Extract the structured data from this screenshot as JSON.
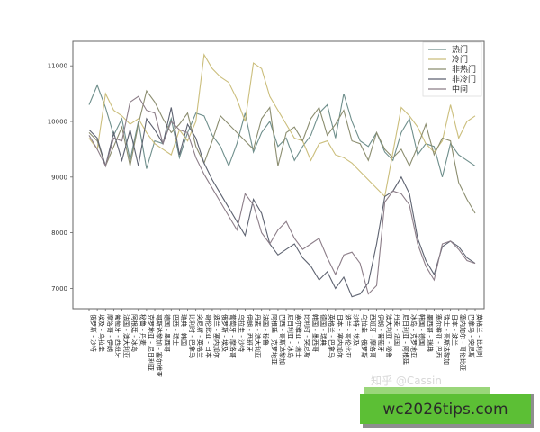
{
  "chart_data": {
    "type": "line",
    "title": "",
    "xlabel": "",
    "ylabel": "",
    "ylim": [
      6600,
      11400
    ],
    "yticks": [
      7000,
      8000,
      9000,
      10000,
      11000
    ],
    "grid": false,
    "legend_position": "upper right",
    "categories": [
      "俄罗斯 - 沙特",
      "埃及 - 乌拉圭",
      "摩洛哥 - 伊朗",
      "葡萄牙 - 西班牙",
      "法国 - 澳大利亚",
      "阿根廷 - 冰岛",
      "秘鲁 - 丹麦",
      "克罗地亚 - 尼日利亚",
      "哥斯达黎加 - 塞尔维亚",
      "德国 - 墨西哥",
      "巴西 - 瑞士",
      "瑞典 - 韩国",
      "比利时 - 巴拿马",
      "突尼斯 - 英格兰",
      "哥伦比亚 - 日本",
      "波兰 - 塞内加尔",
      "俄罗斯 - 埃及",
      "葡萄牙 - 摩洛哥",
      "乌拉圭 - 沙特",
      "伊朗 - 西班牙",
      "丹麦 - 澳大利亚",
      "法国 - 秘鲁",
      "阿根廷 - 克罗地亚",
      "巴西 - 哥斯达黎加",
      "尼日利亚 - 冰岛",
      "塞尔维亚 - 瑞士",
      "比利时 - 突尼斯",
      "韩国 - 墨西哥",
      "德国 - 瑞典",
      "英格兰 - 巴拿马",
      "日本 - 塞内加尔",
      "波兰 - 哥伦比亚",
      "沙特 - 埃及",
      "乌拉圭 - 俄罗斯",
      "西班牙 - 摩洛哥",
      "伊朗 - 葡萄牙",
      "澳大利亚 - 秘鲁",
      "丹麦 - 法国",
      "尼日利亚 - 阿根廷",
      "冰岛 - 克罗地亚",
      "韩国 - 德国",
      "墨西哥 - 瑞典",
      "塞尔维亚 - 巴西",
      "瑞士 - 哥斯达黎加",
      "日本 - 波兰",
      "塞内加尔 - 哥伦比亚",
      "巴拿马 - 突尼斯",
      "英格兰 - 比利时"
    ],
    "series": [
      {
        "name": "热门",
        "color": "#6f8f8c",
        "values": [
          10300,
          10650,
          10250,
          9750,
          10050,
          9300,
          10000,
          9150,
          9650,
          9600,
          10050,
          9350,
          9800,
          10150,
          10100,
          9750,
          9550,
          9200,
          9600,
          10150,
          9450,
          9800,
          10000,
          9550,
          9700,
          9300,
          9550,
          9750,
          10150,
          10300,
          9700,
          10500,
          10000,
          9650,
          9550,
          9800,
          9450,
          9300,
          9800,
          10050,
          9400,
          9600,
          9550,
          9000,
          9600,
          9400,
          9300,
          9200
        ]
      },
      {
        "name": "冷门",
        "color": "#cbbe7c",
        "values": [
          9700,
          9500,
          10500,
          10200,
          10100,
          9950,
          10050,
          9800,
          9600,
          9500,
          9400,
          9850,
          9650,
          10000,
          11200,
          10950,
          10800,
          10700,
          10400,
          10000,
          11050,
          10950,
          10450,
          10200,
          9950,
          9700,
          9650,
          9300,
          9600,
          9650,
          9400,
          9350,
          9250,
          9100,
          8950,
          8800,
          8650,
          9450,
          10250,
          10100,
          9900,
          9600,
          9450,
          9650,
          10300,
          9700,
          10000,
          10100
        ]
      },
      {
        "name": "非热门",
        "color": "#8b8d6f",
        "values": [
          9800,
          9650,
          9200,
          9550,
          9900,
          9200,
          9950,
          10550,
          10350,
          10050,
          9800,
          9950,
          10150,
          9550,
          9250,
          9650,
          10100,
          9950,
          9800,
          9650,
          9500,
          10050,
          10250,
          9200,
          9800,
          9900,
          9650,
          10050,
          10250,
          9750,
          9950,
          10200,
          9650,
          9600,
          9300,
          9800,
          9500,
          9350,
          9500,
          9200,
          9550,
          9950,
          9400,
          9700,
          9650,
          8900,
          8600,
          8350
        ]
      },
      {
        "name": "非冷门",
        "color": "#5d6270",
        "values": [
          9850,
          9700,
          9200,
          9800,
          9300,
          9850,
          9200,
          10050,
          9850,
          9600,
          10250,
          9400,
          9950,
          9700,
          9250,
          8950,
          8700,
          8450,
          8200,
          7950,
          8600,
          8350,
          7800,
          7600,
          7700,
          7800,
          7550,
          7400,
          7150,
          7300,
          7000,
          7200,
          6850,
          6900,
          7100,
          7800,
          8650,
          8750,
          9000,
          8700,
          7900,
          7500,
          7250,
          7750,
          7850,
          7750,
          7550,
          7450
        ]
      },
      {
        "name": "中间",
        "color": "#8c7d88",
        "values": [
          9750,
          9500,
          9200,
          9700,
          9650,
          10350,
          10450,
          10200,
          10150,
          9600,
          10000,
          9850,
          9800,
          9350,
          9050,
          8800,
          8550,
          8300,
          8050,
          8700,
          8500,
          8000,
          7800,
          8050,
          8200,
          7900,
          7700,
          7800,
          7900,
          7550,
          7250,
          7600,
          7650,
          7450,
          6900,
          7050,
          8550,
          8750,
          8700,
          8500,
          7800,
          7400,
          7150,
          7800,
          7850,
          7700,
          7500,
          7450
        ]
      }
    ]
  },
  "legend": {
    "items": [
      {
        "label": "热门",
        "color": "#6f8f8c"
      },
      {
        "label": "冷门",
        "color": "#cbbe7c"
      },
      {
        "label": "非热门",
        "color": "#8b8d6f"
      },
      {
        "label": "非冷门",
        "color": "#5d6270"
      },
      {
        "label": "中间",
        "color": "#8c7d88"
      }
    ]
  },
  "watermarks": {
    "zhihu": "知乎 @Cassin",
    "site": "wc2026tips.com"
  }
}
